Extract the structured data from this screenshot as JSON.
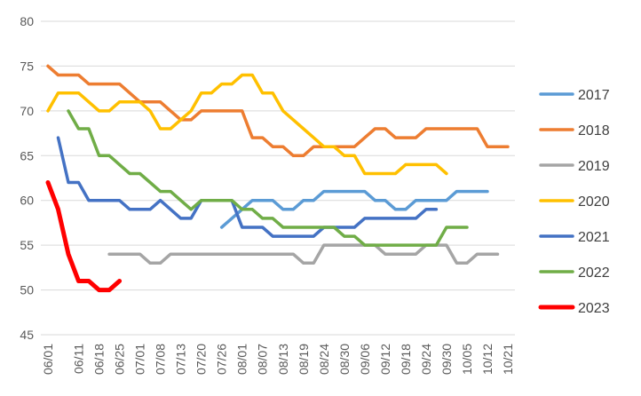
{
  "chart_data": {
    "type": "line",
    "title": "",
    "xlabel": "",
    "ylabel": "",
    "ylim": [
      45,
      80
    ],
    "yticks": [
      45,
      50,
      55,
      60,
      65,
      70,
      75,
      80
    ],
    "grid": "horizontal",
    "legend_position": "right",
    "categories": [
      "06/01",
      "06/04",
      "06/08",
      "06/11",
      "06/15",
      "06/18",
      "06/22",
      "06/25",
      "06/29",
      "07/01",
      "07/05",
      "07/08",
      "07/11",
      "07/13",
      "07/16",
      "07/20",
      "07/23",
      "07/26",
      "07/30",
      "08/01",
      "08/04",
      "08/07",
      "08/10",
      "08/13",
      "08/16",
      "08/19",
      "08/22",
      "08/24",
      "08/27",
      "08/30",
      "09/03",
      "09/06",
      "09/09",
      "09/12",
      "09/15",
      "09/18",
      "09/21",
      "09/24",
      "09/27",
      "09/30",
      "10/03",
      "10/05",
      "10/09",
      "10/12",
      "10/16",
      "10/21"
    ],
    "tick_labels": [
      "06/01",
      "06/11",
      "06/18",
      "06/25",
      "07/01",
      "07/08",
      "07/13",
      "07/20",
      "07/26",
      "08/01",
      "08/07",
      "08/13",
      "08/19",
      "08/24",
      "08/30",
      "09/06",
      "09/12",
      "09/18",
      "09/24",
      "09/30",
      "10/05",
      "10/12",
      "10/21"
    ],
    "series": [
      {
        "name": "2017",
        "color": "#5b9bd5",
        "values": [
          null,
          null,
          null,
          null,
          null,
          null,
          null,
          null,
          null,
          null,
          null,
          null,
          null,
          null,
          null,
          null,
          null,
          57,
          58,
          59,
          60,
          60,
          60,
          59,
          59,
          60,
          60,
          61,
          61,
          61,
          61,
          61,
          60,
          60,
          59,
          59,
          60,
          60,
          60,
          60,
          61,
          61,
          61,
          61,
          null,
          null
        ]
      },
      {
        "name": "2018",
        "color": "#ed7d31",
        "values": [
          75,
          74,
          74,
          74,
          73,
          73,
          73,
          73,
          72,
          71,
          71,
          71,
          70,
          69,
          69,
          70,
          70,
          70,
          70,
          70,
          67,
          67,
          66,
          66,
          65,
          65,
          66,
          66,
          66,
          66,
          66,
          67,
          68,
          68,
          67,
          67,
          67,
          68,
          68,
          68,
          68,
          68,
          68,
          66,
          66,
          66
        ]
      },
      {
        "name": "2019",
        "color": "#a5a5a5",
        "values": [
          null,
          null,
          null,
          null,
          null,
          null,
          54,
          54,
          54,
          54,
          53,
          53,
          54,
          54,
          54,
          54,
          54,
          54,
          54,
          54,
          54,
          54,
          54,
          54,
          54,
          53,
          53,
          55,
          55,
          55,
          55,
          55,
          55,
          54,
          54,
          54,
          54,
          55,
          55,
          55,
          53,
          53,
          54,
          54,
          54,
          null
        ]
      },
      {
        "name": "2020",
        "color": "#ffc000",
        "values": [
          70,
          72,
          72,
          72,
          71,
          70,
          70,
          71,
          71,
          71,
          70,
          68,
          68,
          69,
          70,
          72,
          72,
          73,
          73,
          74,
          74,
          72,
          72,
          70,
          69,
          68,
          67,
          66,
          66,
          65,
          65,
          63,
          63,
          63,
          63,
          64,
          64,
          64,
          64,
          63,
          null,
          null,
          null,
          null,
          null,
          null
        ]
      },
      {
        "name": "2021",
        "color": "#4472c4",
        "values": [
          null,
          67,
          62,
          62,
          60,
          60,
          60,
          60,
          59,
          59,
          59,
          60,
          59,
          58,
          58,
          60,
          60,
          60,
          60,
          57,
          57,
          57,
          56,
          56,
          56,
          56,
          56,
          57,
          57,
          57,
          57,
          58,
          58,
          58,
          58,
          58,
          58,
          59,
          59,
          null,
          null,
          null,
          null,
          null,
          null,
          null
        ]
      },
      {
        "name": "2022",
        "color": "#70ad47",
        "values": [
          null,
          null,
          70,
          68,
          68,
          65,
          65,
          64,
          63,
          63,
          62,
          61,
          61,
          60,
          59,
          60,
          60,
          60,
          60,
          59,
          59,
          58,
          58,
          57,
          57,
          57,
          57,
          57,
          57,
          56,
          56,
          55,
          55,
          55,
          55,
          55,
          55,
          55,
          55,
          57,
          57,
          57,
          null,
          null,
          null,
          null
        ]
      },
      {
        "name": "2023",
        "color": "#ff0000",
        "values": [
          62,
          59,
          54,
          51,
          51,
          50,
          50,
          51,
          null,
          null,
          null,
          null,
          null,
          null,
          null,
          null,
          null,
          null,
          null,
          null,
          null,
          null,
          null,
          null,
          null,
          null,
          null,
          null,
          null,
          null,
          null,
          null,
          null,
          null,
          null,
          null,
          null,
          null,
          null,
          null,
          null,
          null,
          null,
          null,
          null,
          null
        ]
      }
    ]
  }
}
